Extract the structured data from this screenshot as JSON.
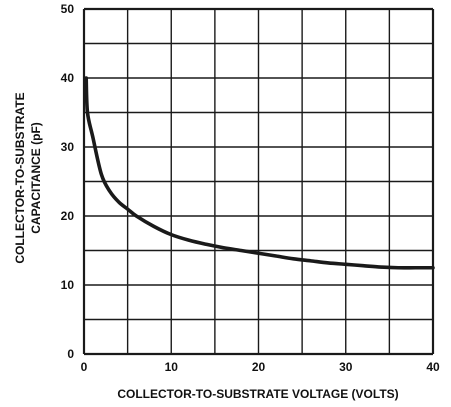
{
  "chart_data": {
    "type": "line",
    "title": "",
    "xlabel": "COLLECTOR-TO-SUBSTRATE VOLTAGE (VOLTS)",
    "ylabel_lines": [
      "COLLECTOR-TO-SUBSTRATE",
      "CAPACITANCE (pF)"
    ],
    "xlim": [
      0,
      40
    ],
    "ylim": [
      0,
      50
    ],
    "x_ticks": [
      0,
      10,
      20,
      30,
      40
    ],
    "y_ticks": [
      0,
      10,
      20,
      30,
      40,
      50
    ],
    "x_tick_labels": [
      "0",
      "10",
      "20",
      "30",
      "40"
    ],
    "y_tick_labels": [
      "0",
      "10",
      "20",
      "30",
      "40",
      "50"
    ],
    "x_grid_step": 5,
    "y_grid_step": 5,
    "grid": true,
    "colors": {
      "line": "#1a1a1a",
      "grid": "#1a1a1a",
      "text": "#111111",
      "background": "#ffffff"
    },
    "series": [
      {
        "points": [
          [
            0.25,
            40
          ],
          [
            0.4,
            35
          ],
          [
            1,
            31.5
          ],
          [
            2,
            26
          ],
          [
            3,
            23.5
          ],
          [
            4,
            22
          ],
          [
            5,
            21
          ],
          [
            6,
            20
          ],
          [
            8,
            18.5
          ],
          [
            10,
            17.3
          ],
          [
            12,
            16.5
          ],
          [
            14,
            15.9
          ],
          [
            16,
            15.4
          ],
          [
            18,
            15.0
          ],
          [
            20,
            14.6
          ],
          [
            22,
            14.2
          ],
          [
            24,
            13.8
          ],
          [
            26,
            13.5
          ],
          [
            28,
            13.2
          ],
          [
            30,
            13.0
          ],
          [
            32,
            12.8
          ],
          [
            34,
            12.6
          ],
          [
            36,
            12.5
          ],
          [
            38,
            12.5
          ],
          [
            40,
            12.5
          ]
        ]
      }
    ]
  }
}
